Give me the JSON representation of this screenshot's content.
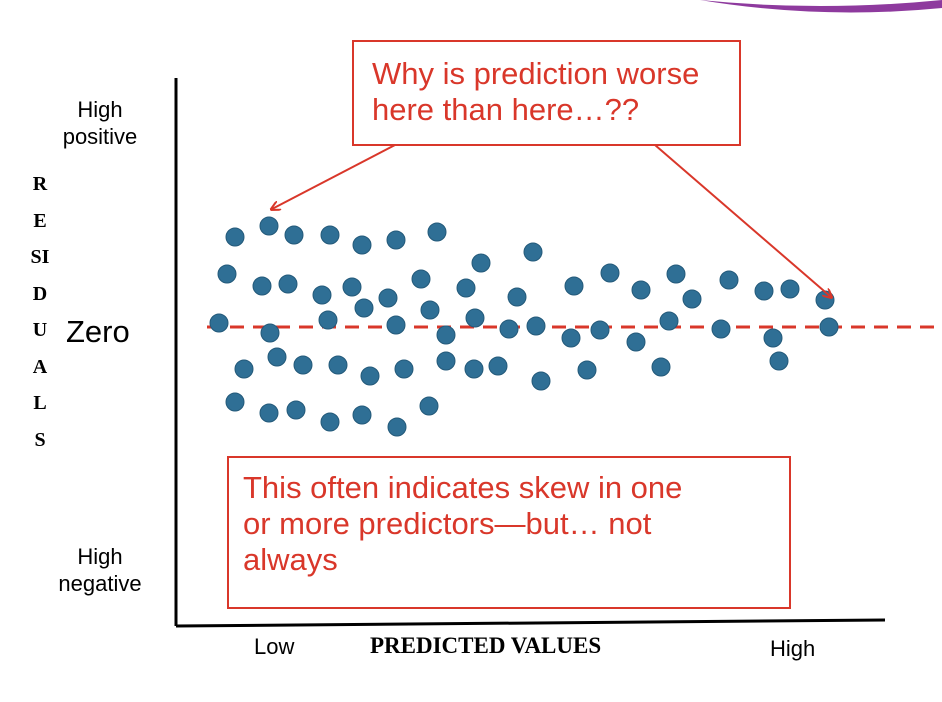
{
  "y_axis": {
    "top": "High\npositive",
    "zero": "Zero",
    "bottom": "High\nnegative",
    "title": "RESIDUALS"
  },
  "x_axis": {
    "low": "Low",
    "title": "PREDICTED VALUES",
    "high": "High"
  },
  "callouts": {
    "top": "Why is prediction worse\nhere than here…??",
    "bottom": "This often indicates skew in one\nor more predictors—but… not\nalways"
  }
}
